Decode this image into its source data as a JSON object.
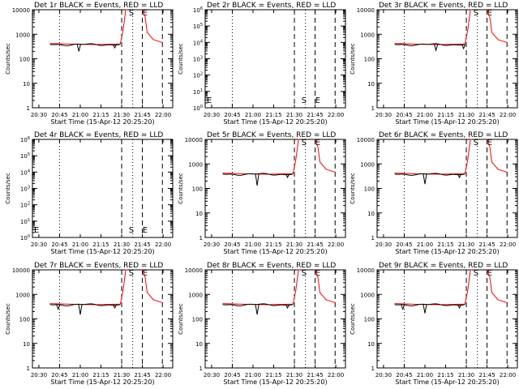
{
  "figure": {
    "x_axis_label": "Start Time (15-Apr-12 20:25:20)",
    "y_axis_label": "Counts/sec",
    "colors": {
      "events": "#000000",
      "lld": "#ff0000",
      "axes": "#000000",
      "background": "#ffffff"
    }
  },
  "chart_data": [
    {
      "type": "line",
      "title": "Det 1r BLACK = Events, RED = LLD",
      "scale": "log",
      "ylim": [
        1,
        10000
      ],
      "yticks": [
        1,
        10,
        100,
        1000,
        10000
      ],
      "ytick_labels": [
        "1",
        "10",
        "100",
        "1000",
        "10000"
      ],
      "x_ticks": [
        "20:30",
        "20:45",
        "21:00",
        "21:15",
        "21:30",
        "21:45",
        "22:00"
      ],
      "markers": [
        {
          "label": "S",
          "time": "21:37"
        },
        {
          "label": "E",
          "time": "21:47"
        }
      ],
      "has_data": true,
      "series": [
        {
          "name": "BLACK = Events",
          "color": "#000000"
        },
        {
          "name": "RED = LLD",
          "color": "#ff0000"
        }
      ],
      "events_dips": [
        {
          "time": "20:59",
          "value": 200
        },
        {
          "time": "21:25",
          "value": 280
        }
      ]
    },
    {
      "type": "line",
      "title": "Det 2r BLACK = Events, RED = LLD",
      "scale": "log",
      "ylim": [
        1,
        1000000
      ],
      "yticks": [
        1,
        10,
        100,
        1000,
        10000,
        100000,
        1000000
      ],
      "ytick_labels": [
        "10^0",
        "10^1",
        "10^2",
        "10^3",
        "10^4",
        "10^5",
        "10^6"
      ],
      "x_ticks": [
        "20:30",
        "20:45",
        "21:00",
        "21:15",
        "21:30",
        "21:45",
        "22:00"
      ],
      "markers": [
        {
          "label": "S",
          "time": "21:37"
        },
        {
          "label": "E",
          "time": "21:47"
        }
      ],
      "has_data": false,
      "series": [],
      "events_dips": []
    },
    {
      "type": "line",
      "title": "Det 3r BLACK = Events, RED = LLD",
      "scale": "log",
      "ylim": [
        1,
        10000
      ],
      "yticks": [
        1,
        10,
        100,
        1000,
        10000
      ],
      "ytick_labels": [
        "1",
        "10",
        "100",
        "1000",
        "10000"
      ],
      "x_ticks": [
        "20:30",
        "20:45",
        "21:00",
        "21:15",
        "21:30",
        "21:45",
        "22:00"
      ],
      "markers": [
        {
          "label": "S",
          "time": "21:37"
        },
        {
          "label": "E",
          "time": "21:47"
        }
      ],
      "has_data": true,
      "series": [
        {
          "name": "BLACK = Events",
          "color": "#000000"
        },
        {
          "name": "RED = LLD",
          "color": "#ff0000"
        }
      ],
      "events_dips": [
        {
          "time": "21:08",
          "value": 220
        },
        {
          "time": "21:28",
          "value": 260
        }
      ]
    },
    {
      "type": "line",
      "title": "Det 4r BLACK = Events, RED = LLD",
      "scale": "log",
      "ylim": [
        1,
        1000000
      ],
      "yticks": [
        1,
        10,
        100,
        1000,
        10000,
        100000,
        1000000
      ],
      "ytick_labels": [
        "10^0",
        "10^1",
        "10^2",
        "10^3",
        "10^4",
        "10^5",
        "10^6"
      ],
      "x_ticks": [
        "20:30",
        "20:45",
        "21:00",
        "21:15",
        "21:30",
        "21:45",
        "22:00"
      ],
      "markers": [
        {
          "label": "S",
          "time": "21:37"
        },
        {
          "label": "E",
          "time": "21:47"
        }
      ],
      "has_data": false,
      "series": [],
      "events_dips": []
    },
    {
      "type": "line",
      "title": "Det 5r BLACK = Events, RED = LLD",
      "scale": "log",
      "ylim": [
        1,
        10000
      ],
      "yticks": [
        1,
        10,
        100,
        1000,
        10000
      ],
      "ytick_labels": [
        "1",
        "10",
        "100",
        "1000",
        "10000"
      ],
      "x_ticks": [
        "20:30",
        "20:45",
        "21:00",
        "21:15",
        "21:30",
        "21:45",
        "22:00"
      ],
      "markers": [
        {
          "label": "S",
          "time": "21:37"
        },
        {
          "label": "E",
          "time": "21:47"
        }
      ],
      "has_data": true,
      "series": [
        {
          "name": "BLACK = Events",
          "color": "#000000"
        },
        {
          "name": "RED = LLD",
          "color": "#ff0000"
        }
      ],
      "events_dips": [
        {
          "time": "21:03",
          "value": 130
        },
        {
          "time": "21:25",
          "value": 280
        }
      ]
    },
    {
      "type": "line",
      "title": "Det 6r BLACK = Events, RED = LLD",
      "scale": "log",
      "ylim": [
        1,
        10000
      ],
      "yticks": [
        1,
        10,
        100,
        1000,
        10000
      ],
      "ytick_labels": [
        "1",
        "10",
        "100",
        "1000",
        "10000"
      ],
      "x_ticks": [
        "20:30",
        "20:45",
        "21:00",
        "21:15",
        "21:30",
        "21:45",
        "22:00"
      ],
      "markers": [
        {
          "label": "S",
          "time": "21:37"
        },
        {
          "label": "E",
          "time": "21:47"
        }
      ],
      "has_data": true,
      "series": [
        {
          "name": "BLACK = Events",
          "color": "#000000"
        },
        {
          "name": "RED = LLD",
          "color": "#ff0000"
        }
      ],
      "events_dips": [
        {
          "time": "21:00",
          "value": 150
        },
        {
          "time": "21:25",
          "value": 280
        }
      ]
    },
    {
      "type": "line",
      "title": "Det 7r BLACK = Events, RED = LLD",
      "scale": "log",
      "ylim": [
        1,
        10000
      ],
      "yticks": [
        1,
        10,
        100,
        1000,
        10000
      ],
      "ytick_labels": [
        "1",
        "10",
        "100",
        "1000",
        "10000"
      ],
      "x_ticks": [
        "20:30",
        "20:45",
        "21:00",
        "21:15",
        "21:30",
        "21:45",
        "22:00"
      ],
      "markers": [
        {
          "label": "S",
          "time": "21:37"
        },
        {
          "label": "E",
          "time": "21:47"
        }
      ],
      "has_data": true,
      "series": [
        {
          "name": "BLACK = Events",
          "color": "#000000"
        },
        {
          "name": "RED = LLD",
          "color": "#ff0000"
        }
      ],
      "events_dips": [
        {
          "time": "20:44",
          "value": 250
        },
        {
          "time": "21:00",
          "value": 150
        },
        {
          "time": "21:25",
          "value": 280
        }
      ]
    },
    {
      "type": "line",
      "title": "Det 8r BLACK = Events, RED = LLD",
      "scale": "log",
      "ylim": [
        1,
        10000
      ],
      "yticks": [
        1,
        10,
        100,
        1000,
        10000
      ],
      "ytick_labels": [
        "1",
        "10",
        "100",
        "1000",
        "10000"
      ],
      "x_ticks": [
        "20:30",
        "20:45",
        "21:00",
        "21:15",
        "21:30",
        "21:45",
        "22:00"
      ],
      "markers": [
        {
          "label": "S",
          "time": "21:37"
        },
        {
          "label": "E",
          "time": "21:47"
        }
      ],
      "has_data": true,
      "series": [
        {
          "name": "BLACK = Events",
          "color": "#000000"
        },
        {
          "name": "RED = LLD",
          "color": "#ff0000"
        }
      ],
      "events_dips": [
        {
          "time": "21:03",
          "value": 150
        },
        {
          "time": "21:25",
          "value": 280
        }
      ]
    },
    {
      "type": "line",
      "title": "Det 9r BLACK = Events, RED = LLD",
      "scale": "log",
      "ylim": [
        1,
        10000
      ],
      "yticks": [
        1,
        10,
        100,
        1000,
        10000
      ],
      "ytick_labels": [
        "1",
        "10",
        "100",
        "1000",
        "10000"
      ],
      "x_ticks": [
        "20:30",
        "20:45",
        "21:00",
        "21:15",
        "21:30",
        "21:45",
        "22:00"
      ],
      "markers": [
        {
          "label": "S",
          "time": "21:37"
        },
        {
          "label": "E",
          "time": "21:47"
        }
      ],
      "has_data": true,
      "series": [
        {
          "name": "BLACK = Events",
          "color": "#000000"
        },
        {
          "name": "RED = LLD",
          "color": "#ff0000"
        }
      ],
      "events_dips": [
        {
          "time": "20:44",
          "value": 250
        },
        {
          "time": "21:00",
          "value": 170
        },
        {
          "time": "21:25",
          "value": 280
        }
      ]
    }
  ]
}
